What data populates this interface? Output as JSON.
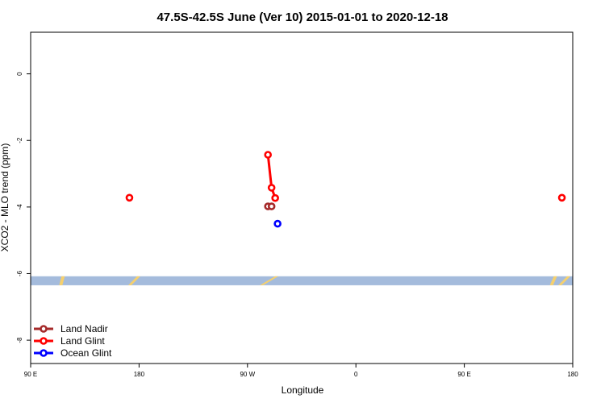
{
  "chart_data": {
    "type": "line",
    "title": "47.5S-42.5S June (Ver 10)   2015-01-01 to 2020-12-18",
    "xlabel": "Longitude",
    "ylabel": "XCO2 - MLO trend (ppm)",
    "x_ticks": [
      {
        "lon": 90,
        "label": "90 E"
      },
      {
        "lon": 180,
        "label": "180"
      },
      {
        "lon": 270,
        "label": "90 W"
      },
      {
        "lon": 360,
        "label": "0"
      },
      {
        "lon": 450,
        "label": "90 E"
      },
      {
        "lon": 540,
        "label": "180"
      }
    ],
    "xlim": [
      90,
      540
    ],
    "y_ticks": [
      0,
      -2,
      -4,
      -6,
      -8
    ],
    "ylim": [
      -8.7,
      1.25
    ],
    "grid": false,
    "legend_position": "bottom-left",
    "series": [
      {
        "name": "Land Nadir",
        "color": "#a52a2a",
        "points": [
          [
            287,
            -3.98
          ],
          [
            290,
            -3.98
          ]
        ]
      },
      {
        "name": "Land Glint",
        "color": "#ff0000",
        "points": [
          [
            172,
            -3.72
          ],
          [
            287,
            -2.43
          ],
          [
            290,
            -3.42
          ],
          [
            293,
            -3.73
          ],
          [
            531,
            -3.72
          ]
        ]
      },
      {
        "name": "Ocean Glint",
        "color": "#0000ff",
        "points": [
          [
            295,
            -4.5
          ]
        ]
      }
    ],
    "land_strip": {
      "y_range": [
        -6.35,
        -6.08
      ],
      "ocean_color": "#a4bbdc",
      "land_color": "#f5d06e"
    }
  }
}
